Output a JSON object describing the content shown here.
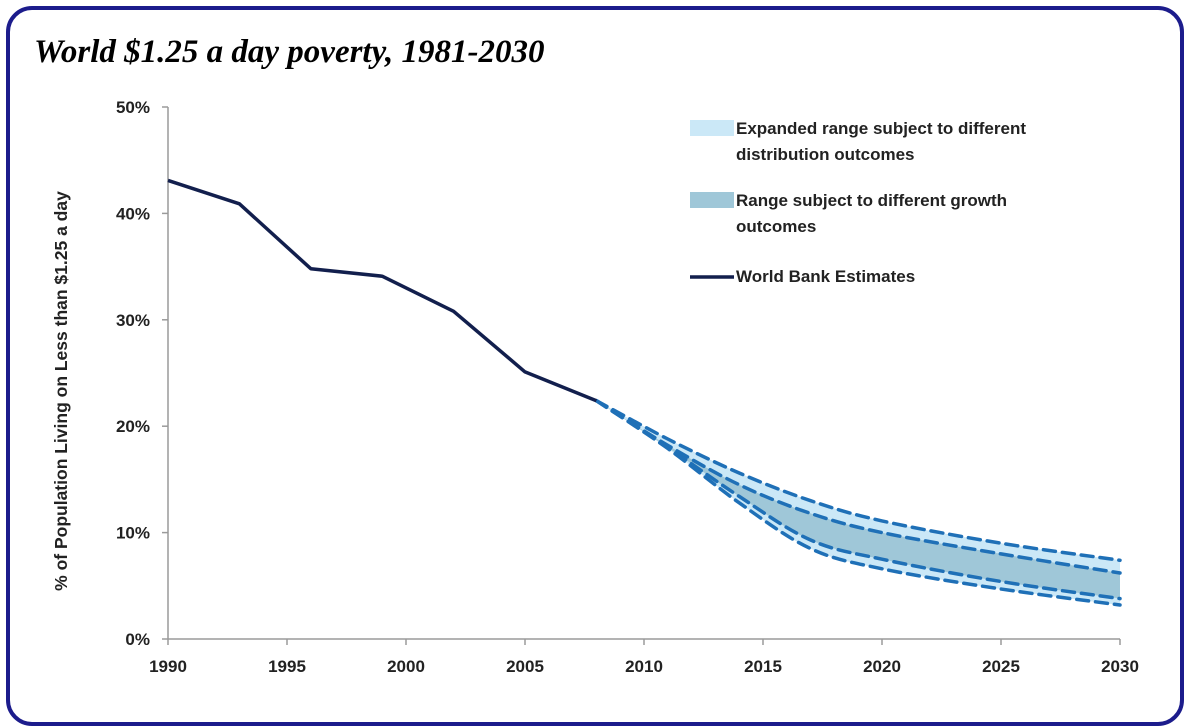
{
  "chart_data": {
    "type": "line",
    "title": "World $1.25 a day poverty, 1981-2030",
    "ylabel": "% of Population Living on Less than $1.25 a day",
    "xlabel": "",
    "xlim": [
      1990,
      2030
    ],
    "ylim": [
      0,
      50
    ],
    "x_ticks": [
      "1990",
      "1995",
      "2000",
      "2005",
      "2010",
      "2015",
      "2020",
      "2025",
      "2030"
    ],
    "y_ticks": [
      "0%",
      "10%",
      "20%",
      "30%",
      "40%",
      "50%"
    ],
    "grid": false,
    "legend_position": "top-right",
    "legend": [
      {
        "label_lines": [
          "Expanded range subject to different",
          "distribution outcomes"
        ],
        "kind": "light-band",
        "color": "#cbe8f7"
      },
      {
        "label_lines": [
          "Range subject to different growth",
          "outcomes"
        ],
        "kind": "dark-band",
        "color": "#9fc7d8"
      },
      {
        "label_lines": [
          "World Bank Estimates"
        ],
        "kind": "line",
        "color": "#121f4d"
      }
    ],
    "series": [
      {
        "name": "World Bank Estimates",
        "style": "solid",
        "color": "#121f4d",
        "points": [
          [
            1990,
            43.1
          ],
          [
            1993,
            40.9
          ],
          [
            1996,
            34.8
          ],
          [
            1999,
            34.1
          ],
          [
            2002,
            30.8
          ],
          [
            2005,
            25.1
          ],
          [
            2008,
            22.4
          ]
        ]
      }
    ],
    "projection_start": [
      2008,
      22.4
    ],
    "projection_x": [
      2011,
      2014,
      2017,
      2020,
      2025,
      2030
    ],
    "projection_bounds": {
      "expanded_upper": [
        18.8,
        15.6,
        13.0,
        11.1,
        9.0,
        7.4
      ],
      "growth_upper": [
        18.2,
        14.5,
        11.8,
        10.0,
        8.0,
        6.2
      ],
      "growth_lower": [
        18.0,
        13.4,
        9.3,
        7.5,
        5.4,
        3.8
      ],
      "expanded_lower": [
        17.9,
        12.8,
        8.5,
        6.6,
        4.7,
        3.2
      ]
    },
    "colors": {
      "history_line": "#121f4d",
      "projection_dash": "#1f70b7",
      "expanded_band": "#cbe8f7",
      "growth_band": "#9fc7d8",
      "axis": "#9a9a9a",
      "frame": "#1c1c8c"
    }
  }
}
